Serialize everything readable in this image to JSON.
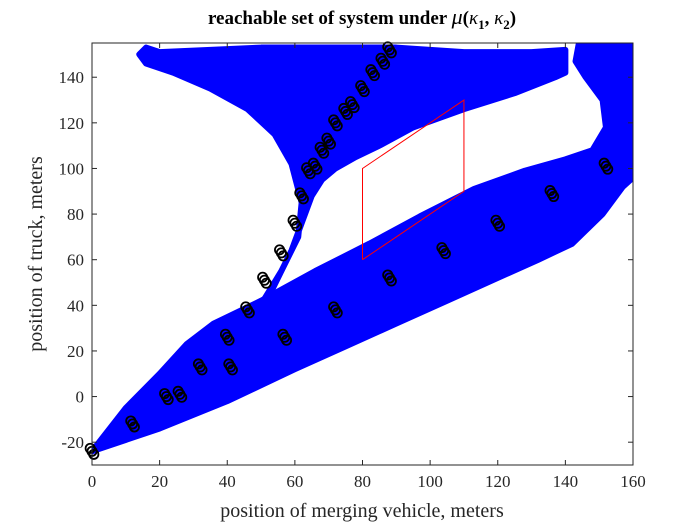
{
  "chart_data": {
    "type": "scatter",
    "title": "reachable set of system under μ(κ₁, κ₂)",
    "title_parts": {
      "prefix": "reachable set of system under ",
      "mu": "μ",
      "open": "(",
      "k": "κ",
      "sub1": "1",
      "sep": ", ",
      "sub2": "2",
      "close": ")"
    },
    "xlabel": "position of merging vehicle, meters",
    "ylabel": "position of truck, meters",
    "xlim": [
      0,
      160
    ],
    "ylim": [
      -30,
      155
    ],
    "xticks": [
      0,
      20,
      40,
      60,
      80,
      100,
      120,
      140,
      160
    ],
    "yticks": [
      -20,
      0,
      20,
      40,
      60,
      80,
      100,
      120,
      140
    ],
    "grid": false,
    "colors": {
      "reach_set": "#0000ff",
      "markers": "#000000",
      "target": "#ff0000"
    },
    "regions": [
      {
        "name": "",
        "color": "#0000ff",
        "outline": [
          [
            0,
            -24
          ],
          [
            8,
            -17
          ],
          [
            15,
            -10
          ],
          [
            22,
            -2
          ],
          [
            28,
            6
          ],
          [
            34,
            14
          ],
          [
            40,
            21
          ],
          [
            46,
            30
          ],
          [
            50,
            38
          ],
          [
            53,
            46
          ],
          [
            56,
            55
          ],
          [
            59,
            64
          ],
          [
            61,
            72
          ],
          [
            63,
            80
          ],
          [
            65,
            88
          ],
          [
            68,
            95
          ],
          [
            72,
            100
          ],
          [
            78,
            105
          ],
          [
            85,
            110
          ],
          [
            95,
            118
          ],
          [
            110,
            126
          ],
          [
            125,
            133
          ],
          [
            137,
            140
          ],
          [
            140,
            142
          ],
          [
            140,
            152
          ],
          [
            130,
            151
          ],
          [
            110,
            151
          ],
          [
            90,
            153
          ],
          [
            70,
            153
          ],
          [
            50,
            153
          ],
          [
            35,
            152
          ],
          [
            20,
            151
          ],
          [
            16,
            153
          ],
          [
            14,
            150
          ],
          [
            16,
            146
          ],
          [
            24,
            142
          ],
          [
            35,
            135
          ],
          [
            46,
            126
          ],
          [
            54,
            115
          ],
          [
            59,
            102
          ],
          [
            62,
            85
          ],
          [
            61,
            70
          ],
          [
            56,
            55
          ],
          [
            49,
            38
          ],
          [
            40,
            24
          ],
          [
            30,
            12
          ],
          [
            20,
            2
          ],
          [
            10,
            -10
          ],
          [
            0,
            -24
          ]
        ]
      },
      {
        "name": "",
        "color": "#0000ff",
        "outline": [
          [
            0,
            -24
          ],
          [
            20,
            -14
          ],
          [
            40,
            -2
          ],
          [
            60,
            12
          ],
          [
            75,
            22
          ],
          [
            90,
            32
          ],
          [
            105,
            42
          ],
          [
            120,
            52
          ],
          [
            132,
            60
          ],
          [
            142,
            67
          ],
          [
            151,
            80
          ],
          [
            157,
            92
          ],
          [
            160,
            96
          ],
          [
            160,
            155
          ],
          [
            144,
            155
          ],
          [
            143,
            147
          ],
          [
            146,
            140
          ],
          [
            151,
            130
          ],
          [
            152,
            118
          ],
          [
            148,
            108
          ],
          [
            140,
            104
          ],
          [
            128,
            99
          ],
          [
            113,
            91
          ],
          [
            97,
            79
          ],
          [
            82,
            67
          ],
          [
            66,
            55
          ],
          [
            50,
            42
          ],
          [
            36,
            32
          ],
          [
            28,
            23
          ],
          [
            20,
            10
          ],
          [
            10,
            -5
          ],
          [
            0,
            -24
          ]
        ]
      }
    ],
    "target_set": {
      "name": "",
      "color": "#ff0000",
      "vertices": [
        [
          80,
          60
        ],
        [
          110,
          90
        ],
        [
          110,
          130
        ],
        [
          80,
          100
        ],
        [
          80,
          60
        ]
      ]
    },
    "series": [
      {
        "name": "",
        "marker": "circle",
        "color": "#000000",
        "points": [
          [
            0,
            -24
          ],
          [
            12,
            -12
          ],
          [
            22,
            0
          ],
          [
            26,
            1
          ],
          [
            32,
            13
          ],
          [
            40,
            26
          ],
          [
            41,
            13
          ],
          [
            46,
            38
          ],
          [
            51,
            51
          ],
          [
            56,
            63
          ],
          [
            57,
            26
          ],
          [
            60,
            76
          ],
          [
            62,
            88
          ],
          [
            64,
            99
          ],
          [
            66,
            101
          ],
          [
            68,
            108
          ],
          [
            70,
            112
          ],
          [
            72,
            38
          ],
          [
            72,
            120
          ],
          [
            75,
            125
          ],
          [
            77,
            128
          ],
          [
            80,
            135
          ],
          [
            83,
            142
          ],
          [
            86,
            147
          ],
          [
            88,
            152
          ],
          [
            88,
            52
          ],
          [
            104,
            64
          ],
          [
            120,
            76
          ],
          [
            136,
            89
          ],
          [
            152,
            101
          ]
        ]
      }
    ]
  }
}
